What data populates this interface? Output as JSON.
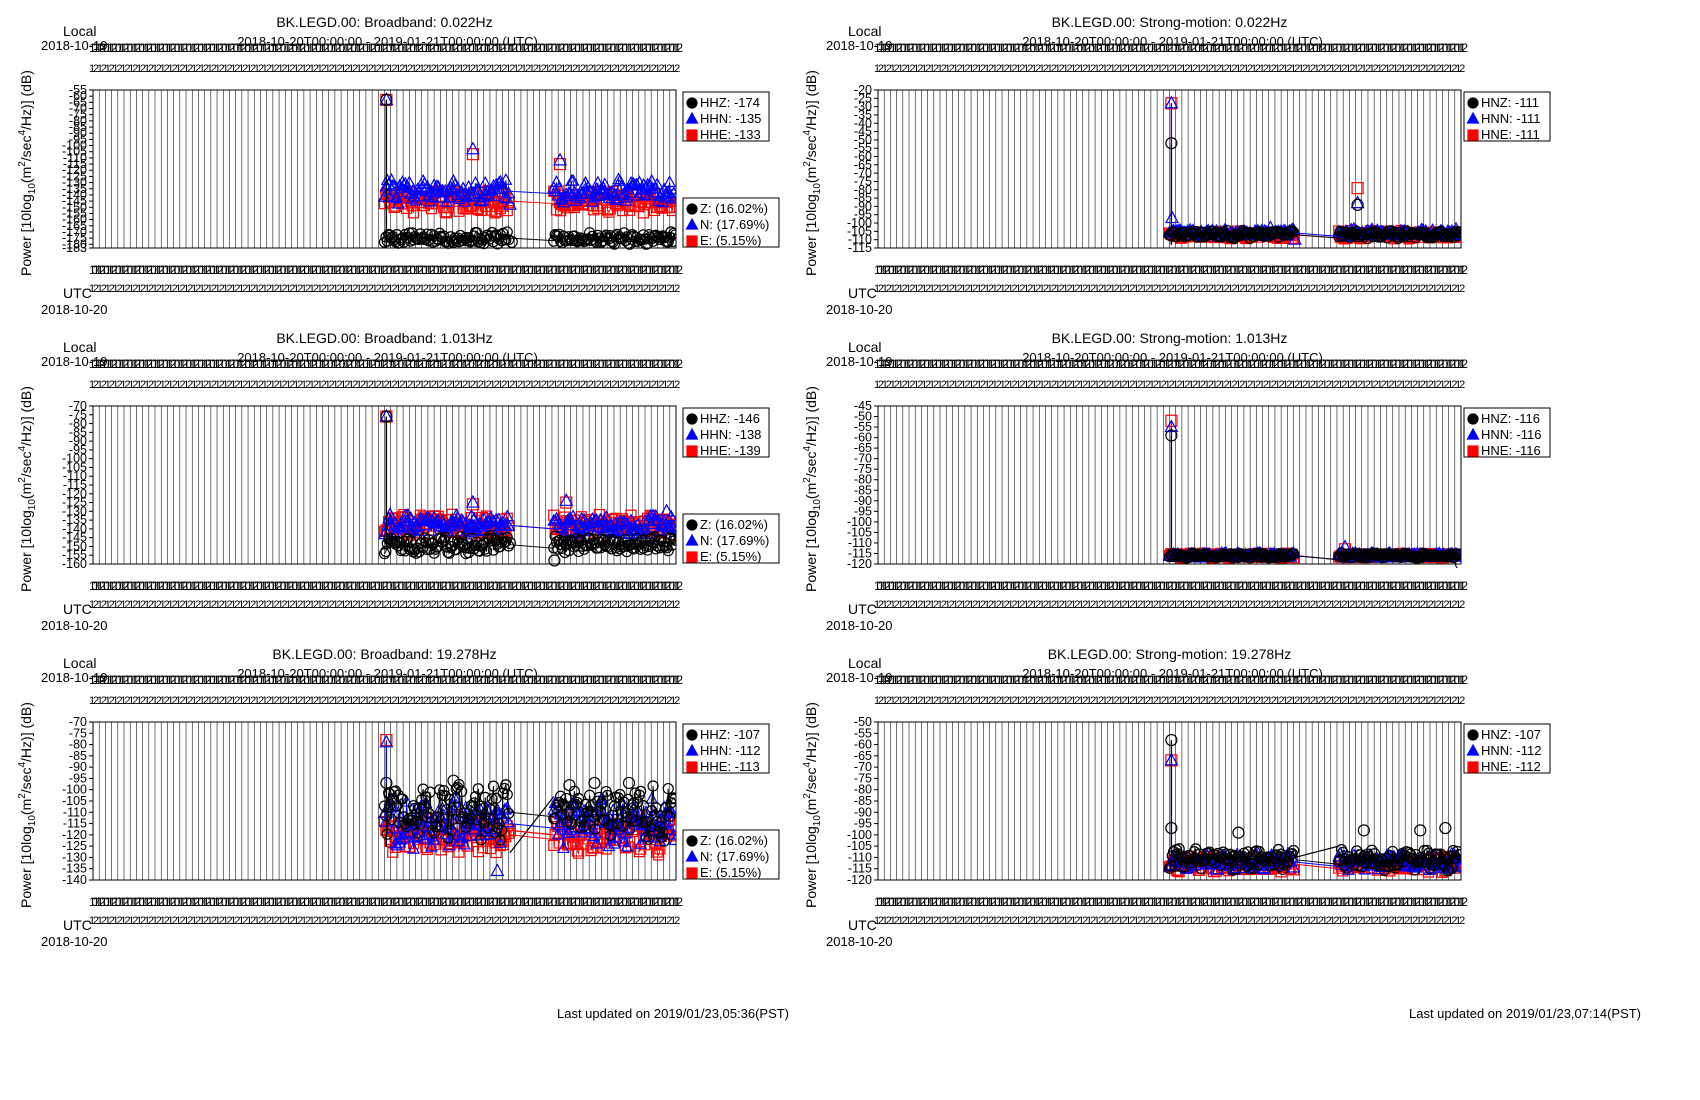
{
  "chart_data": [
    {
      "type": "scatter",
      "title": "BK.LEGD.00: Broadband: 0.022Hz",
      "subtitle": "2018-10-20T00:00:00 - 2019-01-21T00:00:00 (UTC)",
      "ylabel": "Power [10log10(m2/sec4/Hz)] (dB)",
      "top_left_label": "Local",
      "top_left_date": "2018-10-19",
      "bottom_left_label": "UTC",
      "bottom_left_date": "2018-10-20",
      "ylim": [
        -183,
        -55
      ],
      "yticks": [
        -55,
        -60,
        -65,
        -70,
        -75,
        -80,
        -85,
        -90,
        -95,
        -100,
        -105,
        -110,
        -115,
        -120,
        -125,
        -130,
        -135,
        -140,
        -145,
        -150,
        -155,
        -160,
        -165,
        -170,
        -175,
        -180,
        -183
      ],
      "x_range_days": [
        0,
        93
      ],
      "grid": true,
      "channel_legend": [
        {
          "label": "HHZ: -174",
          "color": "#000000",
          "marker": "circle"
        },
        {
          "label": "HHN: -135",
          "color": "#0000ff",
          "marker": "triangle"
        },
        {
          "label": "HHE: -133",
          "color": "#ff0000",
          "marker": "square"
        }
      ],
      "component_legend": [
        {
          "label": "Z: (16.02%)",
          "color": "#000000",
          "marker": "circle"
        },
        {
          "label": "N: (17.69%)",
          "color": "#0000ff",
          "marker": "triangle"
        },
        {
          "label": "E: (5.15%)",
          "color": "#ff0000",
          "marker": "square"
        }
      ],
      "segments": [
        [
          46.5,
          66.5
        ],
        [
          73.5,
          93
        ]
      ],
      "spike": {
        "day": 46.8,
        "base_value": -183,
        "values": [
          -63,
          -63,
          -63
        ]
      },
      "jumps": [],
      "series": [
        {
          "name": "Z",
          "color": "#000000",
          "marker": "circle",
          "mean": -175,
          "spread": 4,
          "points": [
            [
              66.8,
              -178
            ]
          ]
        },
        {
          "name": "N",
          "color": "#0000ff",
          "marker": "triangle",
          "mean": -137,
          "spread": 8,
          "points": [
            [
              60.6,
              -103
            ],
            [
              74.5,
              -112
            ],
            [
              66.5,
              -148
            ]
          ]
        },
        {
          "name": "E",
          "color": "#ff0000",
          "marker": "square",
          "mean": -145,
          "spread": 8,
          "points": [
            [
              60.6,
              -107
            ],
            [
              74.5,
              -115
            ]
          ]
        }
      ]
    },
    {
      "type": "scatter",
      "title": "BK.LEGD.00: Strong-motion: 0.022Hz",
      "subtitle": "2018-10-20T00:00:00 - 2019-01-21T00:00:00 (UTC)",
      "ylabel": "Power [10log10(m2/sec4/Hz)] (dB)",
      "top_left_label": "Local",
      "top_left_date": "2018-10-19",
      "bottom_left_label": "UTC",
      "bottom_left_date": "2018-10-20",
      "ylim": [
        -115,
        -20
      ],
      "yticks": [
        -20,
        -25,
        -30,
        -35,
        -40,
        -45,
        -50,
        -55,
        -60,
        -65,
        -70,
        -75,
        -80,
        -85,
        -90,
        -95,
        -100,
        -105,
        -110,
        -115
      ],
      "x_range_days": [
        0,
        93
      ],
      "grid": true,
      "channel_legend": [
        {
          "label": "HNZ: -111",
          "color": "#000000",
          "marker": "circle"
        },
        {
          "label": "HNN: -111",
          "color": "#0000ff",
          "marker": "triangle"
        },
        {
          "label": "HNE: -111",
          "color": "#ff0000",
          "marker": "square"
        }
      ],
      "component_legend": [],
      "segments": [
        [
          46.5,
          66.5
        ],
        [
          73.5,
          93
        ]
      ],
      "spike": {
        "day": 46.8,
        "base_value": -113,
        "values": [
          -52,
          -28,
          -28
        ]
      },
      "jumps": [],
      "series": [
        {
          "name": "Z",
          "color": "#000000",
          "marker": "circle",
          "mean": -107,
          "spread": 2,
          "points": [
            [
              76.5,
              -89
            ]
          ]
        },
        {
          "name": "N",
          "color": "#0000ff",
          "marker": "triangle",
          "mean": -106,
          "spread": 2,
          "points": [
            [
              46.9,
              -97
            ],
            [
              76.5,
              -88
            ],
            [
              62.6,
              -103
            ],
            [
              66.5,
              -110
            ]
          ]
        },
        {
          "name": "E",
          "color": "#ff0000",
          "marker": "square",
          "mean": -107,
          "spread": 2,
          "points": [
            [
              76.5,
              -79
            ]
          ]
        }
      ]
    },
    {
      "type": "scatter",
      "title": "BK.LEGD.00: Broadband: 1.013Hz",
      "subtitle": "2018-10-20T00:00:00 - 2019-01-21T00:00:00 (UTC)",
      "ylabel": "Power [10log10(m2/sec4/Hz)] (dB)",
      "top_left_label": "Local",
      "top_left_date": "2018-10-19",
      "bottom_left_label": "UTC",
      "bottom_left_date": "2018-10-20",
      "ylim": [
        -160,
        -70
      ],
      "yticks": [
        -70,
        -75,
        -80,
        -85,
        -90,
        -95,
        -100,
        -105,
        -110,
        -115,
        -120,
        -125,
        -130,
        -135,
        -140,
        -145,
        -150,
        -155,
        -160
      ],
      "x_range_days": [
        0,
        93
      ],
      "grid": true,
      "channel_legend": [
        {
          "label": "HHZ: -146",
          "color": "#000000",
          "marker": "circle"
        },
        {
          "label": "HHN: -138",
          "color": "#0000ff",
          "marker": "triangle"
        },
        {
          "label": "HHE: -139",
          "color": "#ff0000",
          "marker": "square"
        }
      ],
      "component_legend": [
        {
          "label": "Z: (16.02%)",
          "color": "#000000",
          "marker": "circle"
        },
        {
          "label": "N: (17.69%)",
          "color": "#0000ff",
          "marker": "triangle"
        },
        {
          "label": "E: (5.15%)",
          "color": "#ff0000",
          "marker": "square"
        }
      ],
      "segments": [
        [
          46.5,
          66.5
        ],
        [
          73.5,
          93
        ]
      ],
      "spike": {
        "day": 46.8,
        "base_value": -150,
        "values": [
          -76,
          -76,
          -76
        ]
      },
      "jumps": [],
      "series": [
        {
          "name": "Z",
          "color": "#000000",
          "marker": "circle",
          "mean": -149,
          "spread": 4,
          "points": [
            [
              66.5,
              -148
            ],
            [
              73.6,
              -158
            ]
          ]
        },
        {
          "name": "N",
          "color": "#0000ff",
          "marker": "triangle",
          "mean": -138,
          "spread": 5,
          "points": [
            [
              60.6,
              -125
            ],
            [
              75.5,
              -124
            ],
            [
              91.5,
              -130
            ]
          ]
        },
        {
          "name": "E",
          "color": "#ff0000",
          "marker": "square",
          "mean": -138,
          "spread": 5,
          "points": [
            [
              60.6,
              -126
            ],
            [
              75.5,
              -125
            ]
          ]
        }
      ]
    },
    {
      "type": "scatter",
      "title": "BK.LEGD.00: Strong-motion: 1.013Hz",
      "subtitle": "2018-10-20T00:00:00 - 2019-01-21T00:00:00 (UTC)",
      "ylabel": "Power [10log10(m2/sec4/Hz)] (dB)",
      "top_left_label": "Local",
      "top_left_date": "2018-10-19",
      "bottom_left_label": "UTC",
      "bottom_left_date": "2018-10-20",
      "ylim": [
        -120,
        -45
      ],
      "yticks": [
        -45,
        -50,
        -55,
        -60,
        -65,
        -70,
        -75,
        -80,
        -85,
        -90,
        -95,
        -100,
        -105,
        -110,
        -115,
        -120
      ],
      "x_range_days": [
        0,
        93
      ],
      "grid": true,
      "channel_legend": [
        {
          "label": "HNZ: -116",
          "color": "#000000",
          "marker": "circle"
        },
        {
          "label": "HNN: -116",
          "color": "#0000ff",
          "marker": "triangle"
        },
        {
          "label": "HNE: -116",
          "color": "#ff0000",
          "marker": "square"
        }
      ],
      "component_legend": [],
      "segments": [
        [
          46.5,
          66.5
        ],
        [
          73.5,
          93
        ]
      ],
      "spike": {
        "day": 46.8,
        "base_value": -118,
        "values": [
          -59,
          -55,
          -52
        ]
      },
      "jumps": [],
      "series": [
        {
          "name": "Z",
          "color": "#000000",
          "marker": "circle",
          "mean": -116,
          "spread": 1,
          "points": [
            [
              93,
              -120
            ]
          ]
        },
        {
          "name": "N",
          "color": "#0000ff",
          "marker": "triangle",
          "mean": -116,
          "spread": 1,
          "points": [
            [
              74.5,
              -112
            ]
          ]
        },
        {
          "name": "E",
          "color": "#ff0000",
          "marker": "square",
          "mean": -116,
          "spread": 1,
          "points": [
            [
              74.5,
              -113
            ]
          ]
        }
      ]
    },
    {
      "type": "scatter",
      "title": "BK.LEGD.00: Broadband: 19.278Hz",
      "subtitle": "2018-10-20T00:00:00 - 2019-01-21T00:00:00 (UTC)",
      "ylabel": "Power [10log10(m2/sec4/Hz)] (dB)",
      "top_left_label": "Local",
      "top_left_date": "2018-10-19",
      "bottom_left_label": "UTC",
      "bottom_left_date": "2018-10-20",
      "ylim": [
        -140,
        -70
      ],
      "yticks": [
        -70,
        -75,
        -80,
        -85,
        -90,
        -95,
        -100,
        -105,
        -110,
        -115,
        -120,
        -125,
        -130,
        -135,
        -140
      ],
      "x_range_days": [
        0,
        93
      ],
      "grid": true,
      "channel_legend": [
        {
          "label": "HHZ: -107",
          "color": "#000000",
          "marker": "circle"
        },
        {
          "label": "HHN: -112",
          "color": "#0000ff",
          "marker": "triangle"
        },
        {
          "label": "HHE: -113",
          "color": "#ff0000",
          "marker": "square"
        }
      ],
      "component_legend": [
        {
          "label": "Z: (16.02%)",
          "color": "#000000",
          "marker": "circle"
        },
        {
          "label": "N: (17.69%)",
          "color": "#0000ff",
          "marker": "triangle"
        },
        {
          "label": "E: (5.15%)",
          "color": "#ff0000",
          "marker": "square"
        }
      ],
      "segments": [
        [
          46.5,
          66.5
        ],
        [
          73.5,
          93
        ]
      ],
      "spike": {
        "day": 46.8,
        "base_value": -125,
        "values": [
          -97,
          -79,
          -78
        ]
      },
      "jumps": [
        {
          "color": "#000000",
          "from": [
            66.5,
            -128
          ],
          "to": [
            73.5,
            -103
          ]
        },
        {
          "color": "#ff0000",
          "from": [
            66.5,
            -118
          ],
          "to": [
            73.5,
            -120
          ]
        }
      ],
      "series": [
        {
          "name": "Z",
          "color": "#000000",
          "marker": "circle",
          "mean": -110,
          "spread": 10,
          "points": [
            [
              47.3,
              -102
            ],
            [
              57.5,
              -96
            ],
            [
              76.0,
              -98
            ],
            [
              80.0,
              -97
            ],
            [
              85.5,
              -97
            ]
          ]
        },
        {
          "name": "N",
          "color": "#0000ff",
          "marker": "triangle",
          "mean": -115,
          "spread": 9,
          "points": [
            [
              64.5,
              -136
            ]
          ]
        },
        {
          "name": "E",
          "color": "#ff0000",
          "marker": "square",
          "mean": -120,
          "spread": 7,
          "points": [
            [
              66.5,
              -118
            ]
          ]
        }
      ]
    },
    {
      "type": "scatter",
      "title": "BK.LEGD.00: Strong-motion: 19.278Hz",
      "subtitle": "2018-10-20T00:00:00 - 2019-01-21T00:00:00 (UTC)",
      "ylabel": "Power [10log10(m2/sec4/Hz)] (dB)",
      "top_left_label": "Local",
      "top_left_date": "2018-10-19",
      "bottom_left_label": "UTC",
      "bottom_left_date": "2018-10-20",
      "ylim": [
        -120,
        -50
      ],
      "yticks": [
        -50,
        -55,
        -60,
        -65,
        -70,
        -75,
        -80,
        -85,
        -90,
        -95,
        -100,
        -105,
        -110,
        -115,
        -120
      ],
      "x_range_days": [
        0,
        93
      ],
      "grid": true,
      "channel_legend": [
        {
          "label": "HNZ: -107",
          "color": "#000000",
          "marker": "circle"
        },
        {
          "label": "HNN: -112",
          "color": "#0000ff",
          "marker": "triangle"
        },
        {
          "label": "HNE: -112",
          "color": "#ff0000",
          "marker": "square"
        }
      ],
      "component_legend": [],
      "segments": [
        [
          46.5,
          66.5
        ],
        [
          73.5,
          93
        ]
      ],
      "spike": {
        "day": 46.8,
        "base_value": -114,
        "values": [
          -58,
          -67,
          -67
        ]
      },
      "jumps": [
        {
          "color": "#000000",
          "from": [
            66.5,
            -110
          ],
          "to": [
            73.5,
            -105
          ]
        }
      ],
      "series": [
        {
          "name": "Z",
          "color": "#000000",
          "marker": "circle",
          "mean": -111,
          "spread": 4,
          "points": [
            [
              46.8,
              -97
            ],
            [
              57.5,
              -99
            ],
            [
              77.5,
              -98
            ],
            [
              86.5,
              -98
            ],
            [
              90.5,
              -97
            ]
          ]
        },
        {
          "name": "N",
          "color": "#0000ff",
          "marker": "triangle",
          "mean": -112,
          "spread": 3,
          "points": []
        },
        {
          "name": "E",
          "color": "#ff0000",
          "marker": "square",
          "mean": -113,
          "spread": 3,
          "points": []
        }
      ]
    }
  ],
  "footers": [
    "Last updated on 2019/01/23,05:36(PST)",
    "Last updated on 2019/01/23,07:14(PST)"
  ]
}
